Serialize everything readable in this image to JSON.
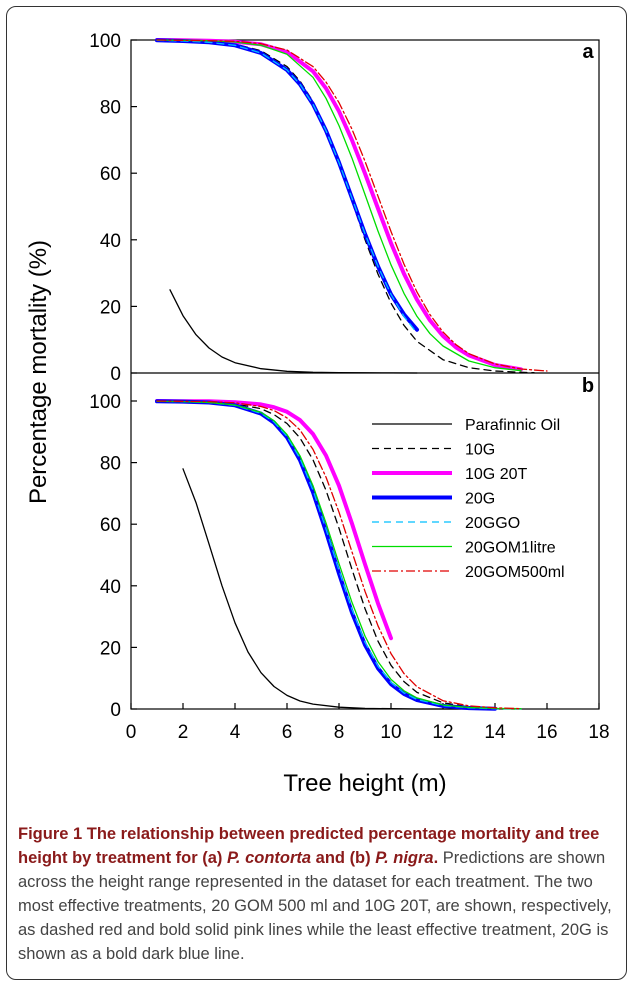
{
  "figure": {
    "caption_title_html": "Figure 1 The relationship between predicted percentage mortality and tree height by treatment for (a) <i>P. contorta</i> and (b) <i>P. nigra</i>.",
    "caption_body": "Predictions are shown across the height range represented in the dataset for each treatment. The two most effective treatments, 20 GOM 500 ml and 10G 20T, are shown, respectively, as dashed red and bold solid pink lines while the least effective treatment, 20G is shown as a bold dark blue line."
  },
  "chart_data": {
    "type": "line",
    "xlabel": "Tree height (m)",
    "ylabel": "Percentage mortality (%)",
    "xlim": [
      0,
      18
    ],
    "ylim": [
      0,
      100
    ],
    "xticks": [
      0,
      2,
      4,
      6,
      8,
      10,
      12,
      14,
      16,
      18
    ],
    "yticks": [
      0,
      20,
      40,
      60,
      80,
      100
    ],
    "legend_position": "right of panel b, upper area",
    "colors": {
      "Parafinnic Oil": "#000000",
      "10G": "#000000",
      "10G 20T": "#ff00ff",
      "20G": "#0000ff",
      "20GGO": "#00bfff",
      "20GOM1litre": "#00dd00",
      "20GOM500ml": "#e00000"
    },
    "legend": [
      "Parafinnic Oil",
      "10G",
      "10G 20T",
      "20G",
      "20GGO",
      "20GOM1litre",
      "20GOM500ml"
    ],
    "panels": [
      {
        "label": "a",
        "series": [
          {
            "name": "Parafinnic Oil",
            "x": [
              1.5,
              2,
              2.5,
              3,
              3.5,
              4,
              5,
              6,
              7,
              8,
              9,
              10,
              11
            ],
            "y": [
              25,
              17.2,
              11.5,
              7.5,
              4.8,
              3.1,
              1.3,
              0.5,
              0.2,
              0.1,
              0.05,
              0.02,
              0
            ]
          },
          {
            "name": "10G",
            "x": [
              1,
              2,
              3,
              4,
              5,
              6,
              6.5,
              7,
              7.5,
              8,
              8.5,
              9,
              9.5,
              10,
              10.5,
              11,
              12,
              13,
              14,
              15,
              15.5
            ],
            "y": [
              99.9,
              99.8,
              99.5,
              98.8,
              96.8,
              92,
              87.7,
              81.5,
              73.2,
              63,
              51.6,
              40.1,
              29.7,
              21,
              14.3,
              9.5,
              4,
              1.6,
              0.6,
              0.2,
              0.1
            ]
          },
          {
            "name": "10G 20T",
            "x": [
              1,
              2,
              3,
              4,
              5,
              6,
              7,
              7.5,
              8,
              8.5,
              9,
              9.5,
              10,
              10.5,
              11,
              11.5,
              12,
              12.5,
              13,
              14,
              15
            ],
            "y": [
              100,
              99.9,
              99.8,
              99.5,
              98.7,
              96.4,
              90.6,
              85.5,
              78.6,
              69.9,
              59.9,
              49.4,
              39,
              29.8,
              22,
              15.8,
              11.1,
              7.7,
              5.3,
              2.4,
              1.1
            ]
          },
          {
            "name": "20G",
            "x": [
              1,
              2,
              3,
              4,
              5,
              6,
              6.5,
              7,
              7.5,
              8,
              8.5,
              9,
              9.5,
              10,
              10.5,
              11
            ],
            "y": [
              99.9,
              99.7,
              99.3,
              98.4,
              96.1,
              91,
              86.7,
              80.7,
              72.8,
              63.2,
              52.5,
              41.8,
              32,
              23.6,
              17.6,
              13
            ]
          },
          {
            "name": "20GGO",
            "x": [
              1,
              2,
              3,
              4,
              5,
              6,
              6.5,
              7,
              7.5,
              8,
              8.5,
              9,
              9.5,
              10,
              10.5,
              11
            ],
            "y": [
              99.9,
              99.7,
              99.3,
              98.4,
              96.1,
              91,
              86.7,
              80.7,
              72.8,
              63.2,
              52.5,
              41.8,
              32,
              23.6,
              17,
              12
            ]
          },
          {
            "name": "20GOM1litre",
            "x": [
              1,
              2,
              3,
              4,
              5,
              6,
              7,
              7.5,
              8,
              8.5,
              9,
              9.5,
              10,
              10.5,
              11,
              11.5,
              12,
              13,
              14,
              15
            ],
            "y": [
              100,
              99.9,
              99.8,
              99.4,
              98.4,
              95.7,
              88.8,
              82.5,
              74.3,
              64.5,
              53.6,
              42.6,
              32.5,
              23.9,
              17,
              11.8,
              8.1,
              3.6,
              1.6,
              0.7
            ]
          },
          {
            "name": "20GOM500ml",
            "x": [
              1,
              2,
              3,
              4,
              5,
              6,
              7,
              7.5,
              8,
              8.5,
              9,
              9.5,
              10,
              10.5,
              11,
              11.5,
              12,
              12.5,
              13,
              14,
              15,
              16
            ],
            "y": [
              100,
              99.9,
              99.8,
              99.6,
              98.9,
              97,
              92,
              87.4,
              81.2,
              73.2,
              63.6,
              53.1,
              42.5,
              32.7,
              24.3,
              17.5,
              12.3,
              8.5,
              5.8,
              2.7,
              1.2,
              0.6
            ]
          }
        ]
      },
      {
        "label": "b",
        "series": [
          {
            "name": "Parafinnic Oil",
            "x": [
              2,
              2.5,
              3,
              3.5,
              4,
              4.5,
              5,
              5.5,
              6,
              6.5,
              7,
              8,
              9,
              10,
              11,
              12,
              13
            ],
            "y": [
              78,
              67,
              53.6,
              40,
              28,
              18.5,
              11.8,
              7.3,
              4.4,
              2.6,
              1.6,
              0.6,
              0.2,
              0.1,
              0,
              0,
              0
            ]
          },
          {
            "name": "10G",
            "x": [
              1,
              2,
              3,
              4,
              5,
              5.5,
              6,
              6.5,
              7,
              7.5,
              8,
              8.5,
              9,
              9.5,
              10,
              10.5,
              11,
              12,
              13,
              14
            ],
            "y": [
              100,
              99.9,
              99.7,
              99.1,
              97.5,
              95.6,
              92.7,
              88,
              80.9,
              71,
              58.7,
              45.3,
              32.6,
              22,
              14.2,
              8.9,
              5.4,
              2,
              0.7,
              0.3
            ]
          },
          {
            "name": "10G 20T",
            "x": [
              1,
              2,
              3,
              4,
              5,
              5.5,
              6,
              6.5,
              7,
              7.5,
              8,
              8.5,
              9,
              9.5,
              10
            ],
            "y": [
              100,
              99.9,
              99.9,
              99.6,
              98.9,
              98,
              96.5,
              93.8,
              89.3,
              82.3,
              72.5,
              60.2,
              47,
              34.3,
              23
            ]
          },
          {
            "name": "20G",
            "x": [
              1,
              2,
              3,
              4,
              5,
              5.5,
              6,
              6.5,
              7,
              7.5,
              8,
              8.5,
              9,
              9.5,
              10,
              10.5,
              11,
              12,
              13,
              14
            ],
            "y": [
              99.9,
              99.8,
              99.5,
              98.6,
              95.9,
              93,
              88.2,
              80.8,
              70.4,
              57.6,
              44,
              31.3,
              20.8,
              13.2,
              8.1,
              4.9,
              2.9,
              1,
              0.3,
              0.1
            ]
          },
          {
            "name": "20GGO",
            "x": [
              1,
              2,
              3,
              4,
              5,
              5.5,
              6,
              6.5,
              7,
              7.5,
              8,
              8.5,
              9,
              9.5,
              10,
              10.5,
              11,
              12,
              13,
              14,
              15
            ],
            "y": [
              99.9,
              99.8,
              99.5,
              98.6,
              96,
              93.2,
              88.5,
              81.3,
              71,
              58.4,
              45,
              32.3,
              21.7,
              13.9,
              8.6,
              5.2,
              3.1,
              1.1,
              0.4,
              0.1,
              0
            ]
          },
          {
            "name": "20GOM1litre",
            "x": [
              1,
              2,
              3,
              4,
              5,
              5.5,
              6,
              6.5,
              7,
              7.5,
              8,
              8.5,
              9,
              9.5,
              10,
              10.5,
              11,
              12,
              13,
              14,
              15
            ],
            "y": [
              99.9,
              99.8,
              99.5,
              98.7,
              96.3,
              93.6,
              89.1,
              82.2,
              72.5,
              60.4,
              47.2,
              34.6,
              23.7,
              15.4,
              9.6,
              5.9,
              3.6,
              1.3,
              0.5,
              0.2,
              0.1
            ]
          },
          {
            "name": "20GOM500ml",
            "x": [
              1,
              2,
              3,
              4,
              5,
              5.5,
              6,
              6.5,
              7,
              7.5,
              8,
              8.5,
              9,
              9.5,
              10,
              10.5,
              11,
              12,
              13,
              14,
              15
            ],
            "y": [
              100,
              99.9,
              99.8,
              99.4,
              98.2,
              96.9,
              94.5,
              90.6,
              84.3,
              75.3,
              63.9,
              51,
              38.2,
              27,
              18,
              11.5,
              7.2,
              2.7,
              1,
              0.4,
              0.1
            ]
          }
        ]
      }
    ]
  }
}
